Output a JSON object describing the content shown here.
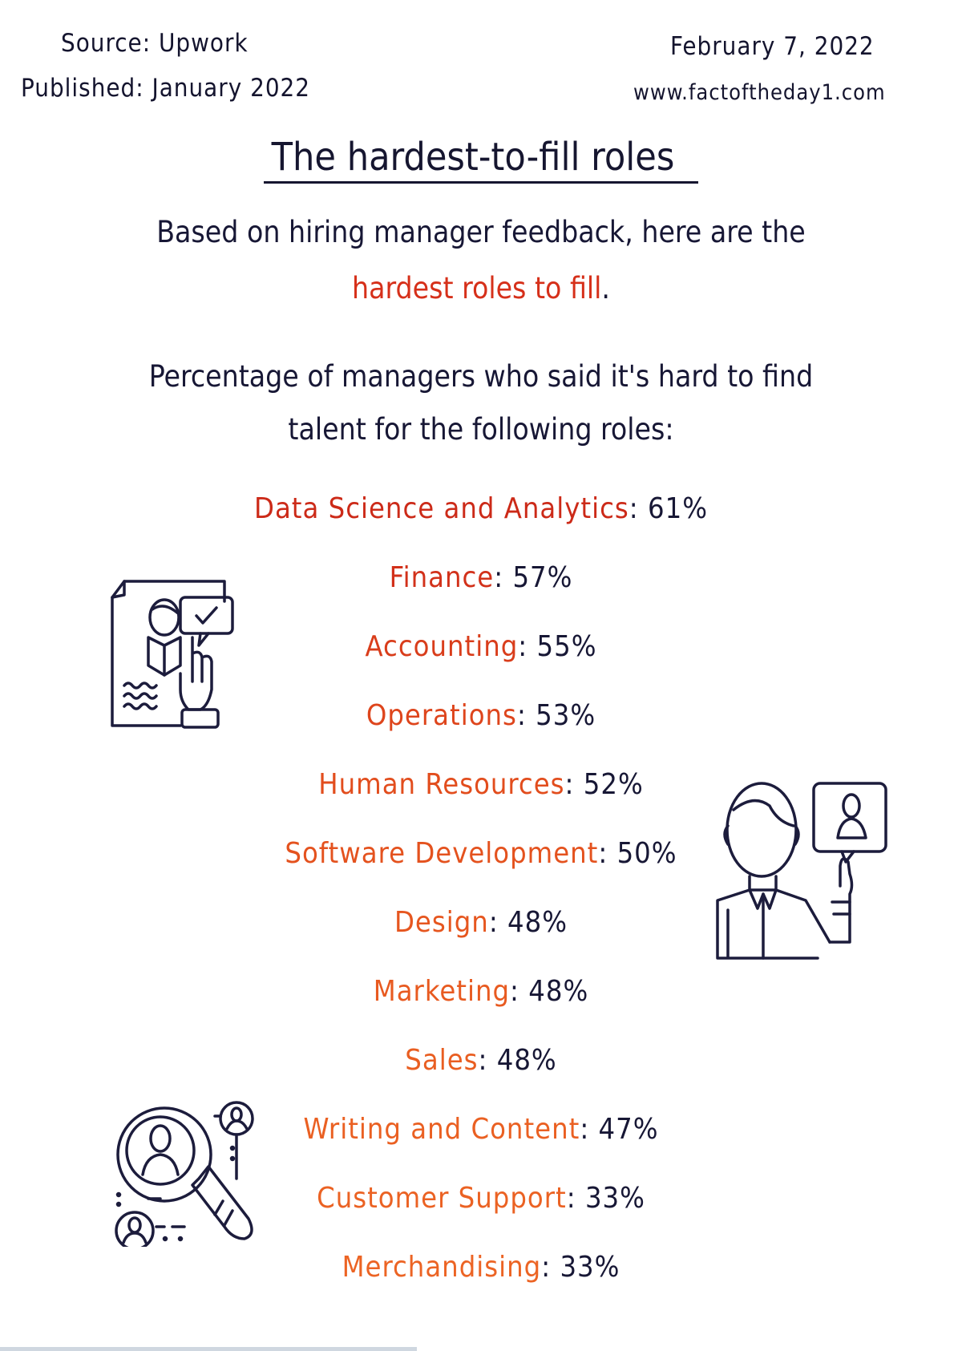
{
  "header": {
    "source": "Source: Upwork",
    "published": "Published: January 2022",
    "date": "February  7, 2022",
    "website": "www.factoftheday1.com"
  },
  "title": "The hardest-to-fill roles",
  "intro": {
    "line1": "Based on hiring manager feedback, here are the",
    "line2_highlight": "hardest roles to fill",
    "line2_end": "."
  },
  "description": {
    "line1": "Percentage of managers who said it's hard to find",
    "line2": "talent for the following roles:"
  },
  "roles": [
    {
      "label": "Data Science and Analytics",
      "sep": ": ",
      "value": "61%",
      "color": "#cc2a18"
    },
    {
      "label": "Finance",
      "sep": ": ",
      "value": "57%",
      "color": "#d2311a"
    },
    {
      "label": "Accounting",
      "sep": ": ",
      "value": "55%",
      "color": "#d93d1b"
    },
    {
      "label": "Operations",
      "sep": ": ",
      "value": "53%",
      "color": "#de451c"
    },
    {
      "label": "Human Resources",
      "sep": ": ",
      "value": "52%",
      "color": "#e24d1d"
    },
    {
      "label": "Software Development",
      "sep": ": ",
      "value": "50%",
      "color": "#e4521e"
    },
    {
      "label": "Design",
      "sep": ": ",
      "value": "48%",
      "color": "#e6561f"
    },
    {
      "label": "Marketing",
      "sep": ": ",
      "value": "48%",
      "color": "#e85a20"
    },
    {
      "label": "Sales",
      "sep": ": ",
      "value": "48%",
      "color": "#e95e21"
    },
    {
      "label": "Writing and Content",
      "sep": ": ",
      "value": "47%",
      "color": "#ea6022"
    },
    {
      "label": "Customer Support",
      "sep": ": ",
      "value": "33%",
      "color": "#eb6223"
    },
    {
      "label": "Merchandising",
      "sep": ": ",
      "value": "33%",
      "color": "#ec6424"
    }
  ],
  "illustrations": {
    "ill1": "resume-select-icon",
    "ill2": "person-profile-icon",
    "ill3": "talent-search-icon"
  },
  "chart_data": {
    "type": "table",
    "title": "The hardest-to-fill roles",
    "subtitle": "Percentage of managers who said it's hard to find talent for the following roles",
    "source": "Upwork",
    "published": "January 2022",
    "categories": [
      "Data Science and Analytics",
      "Finance",
      "Accounting",
      "Operations",
      "Human Resources",
      "Software Development",
      "Design",
      "Marketing",
      "Sales",
      "Writing and Content",
      "Customer Support",
      "Merchandising"
    ],
    "values": [
      61,
      57,
      55,
      53,
      52,
      50,
      48,
      48,
      48,
      47,
      33,
      33
    ],
    "unit": "%"
  }
}
